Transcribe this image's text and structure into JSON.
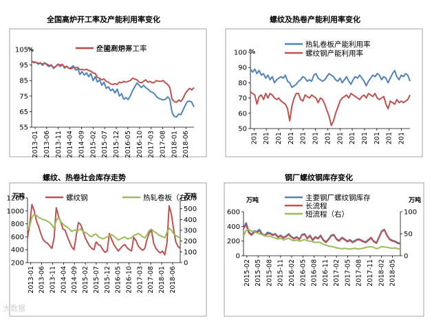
{
  "watermark": "大数据",
  "chart_data": [
    {
      "type": "line",
      "title": "全国高炉开工率及产能利用率变化",
      "ylabel": "%",
      "ylim": [
        55,
        105
      ],
      "yticks": [
        55,
        65,
        75,
        85,
        95,
        105
      ],
      "xticks": [
        "2013-01",
        "2013-06",
        "2013-11",
        "2014-04",
        "2014-09",
        "2015-02",
        "2015-07",
        "2015-12",
        "2016-05",
        "2016-10",
        "2017-03",
        "2017-08",
        "2018-01",
        "2018-06"
      ],
      "legend_position": "top-center",
      "series": [
        {
          "name": "全国高炉开工率",
          "color": "#4F81BD",
          "axis": "left",
          "values": [
            97.5,
            96.5,
            96.8,
            95.5,
            96.5,
            94.8,
            96.5,
            95,
            94,
            95.2,
            92.8,
            94.2,
            95.6,
            94,
            95.5,
            93,
            94.3,
            92.8,
            93.5,
            94.5,
            91.8,
            92.5,
            89,
            90.8,
            88.5,
            90,
            87.5,
            89.5,
            85,
            87.5,
            84,
            85.5,
            82,
            84,
            80,
            81,
            78.5,
            79.5,
            77,
            79.5,
            75,
            76.5,
            73,
            74,
            72.8,
            75.2,
            78.5,
            81,
            83.5,
            82,
            80.5,
            82,
            80.5,
            79.5,
            78,
            77.5,
            76.5,
            74.5,
            73.5,
            73,
            72.5,
            73,
            74.5,
            73,
            64.5,
            62,
            61.5,
            63.5,
            63,
            66,
            69,
            71.5,
            71.8,
            71,
            68
          ]
        },
        {
          "name": "产能利用率",
          "color": "#C0504D",
          "axis": "left",
          "values": [
            97.3,
            97,
            96.6,
            96.2,
            96,
            95.8,
            96,
            95.6,
            94.8,
            94.5,
            93.5,
            94,
            95.5,
            95,
            95.2,
            93.8,
            94,
            93,
            92.5,
            93.5,
            93.3,
            93.5,
            92,
            92.2,
            91.8,
            92.3,
            91.5,
            91,
            90,
            89.5,
            87,
            86.5,
            85.5,
            86,
            84.5,
            84,
            82.8,
            82.5,
            83,
            82.5,
            84,
            83.5,
            84.5,
            84,
            84.5,
            85,
            86.5,
            86,
            85.5,
            84,
            83.5,
            84.5,
            85.5,
            84,
            84.5,
            83.5,
            84,
            85,
            84.5,
            84.5,
            85,
            83.5,
            82.5,
            80.5,
            73,
            71.5,
            71,
            72.5,
            71.5,
            73.5,
            76.5,
            78.5,
            80,
            79,
            80.5
          ]
        }
      ]
    },
    {
      "type": "line",
      "title": "螺纹及热卷产能利用率变化",
      "ylabel": "%",
      "ylim": [
        50,
        100
      ],
      "yticks": [
        50,
        60,
        70,
        80,
        90,
        100
      ],
      "xticks": [
        "201",
        "201",
        "201",
        "201",
        "201",
        "201",
        "201",
        "201",
        "201",
        "201",
        "201",
        "201",
        "201"
      ],
      "legend_position": "top-center",
      "series": [
        {
          "name": "热轧卷板产能利用率",
          "color": "#4F81BD",
          "axis": "left",
          "values": [
            89,
            87,
            89,
            86,
            88,
            85,
            86,
            83,
            85,
            82,
            84,
            80,
            82,
            83,
            84,
            83,
            85,
            81,
            80,
            77,
            78,
            79,
            81,
            82,
            84,
            83,
            81,
            82,
            81,
            85,
            86,
            83,
            82,
            81,
            82,
            84,
            86,
            85,
            84,
            82,
            81,
            83,
            80,
            82,
            84,
            81,
            79,
            82,
            84,
            83,
            85,
            83,
            81,
            78,
            81,
            83,
            85,
            84,
            86,
            85,
            82,
            84,
            83,
            80,
            83,
            86,
            88,
            84,
            82,
            85,
            84,
            86,
            85,
            81
          ]
        },
        {
          "name": "螺纹钢产能利用率",
          "color": "#C0504D",
          "axis": "left",
          "values": [
            74,
            73,
            72,
            66,
            71,
            72,
            69,
            73,
            70,
            73,
            72,
            70,
            69,
            70,
            68,
            67,
            66,
            63,
            55,
            65,
            70,
            73,
            73,
            69,
            68,
            72,
            71,
            70,
            72,
            71,
            70,
            67,
            70,
            69,
            66,
            62,
            58,
            52,
            55,
            60,
            64,
            68,
            70,
            71,
            72,
            70,
            73,
            72,
            71,
            70,
            69,
            71,
            72,
            70,
            73,
            72,
            71,
            73,
            70,
            69,
            70,
            71,
            66,
            63,
            68,
            67,
            66,
            69,
            67,
            68,
            67,
            68,
            69,
            72
          ]
        }
      ]
    },
    {
      "type": "line",
      "title": "螺纹、热卷社会库存走势",
      "ylabel": "万吨",
      "y2label": "万吨",
      "ylim": [
        200,
        1200
      ],
      "yticks": [
        200,
        400,
        600,
        800,
        1000,
        1200
      ],
      "y2lim": [
        0,
        600
      ],
      "y2ticks": [
        0,
        100,
        200,
        300,
        400,
        500,
        600
      ],
      "xticks": [
        "2013-01",
        "2013-06",
        "2013-11",
        "2014-04",
        "2014-09",
        "2015-02",
        "2015-07",
        "2015-12",
        "2016-05",
        "2016-10",
        "2017-03",
        "2017-08",
        "2018-01",
        "2018-06"
      ],
      "legend_position": "top",
      "series": [
        {
          "name": "螺纹钢",
          "color": "#C0504D",
          "axis": "left",
          "values": [
            580,
            790,
            1100,
            1000,
            850,
            760,
            650,
            560,
            520,
            500,
            460,
            420,
            580,
            1050,
            920,
            830,
            720,
            700,
            600,
            520,
            440,
            400,
            620,
            820,
            790,
            700,
            590,
            520,
            460,
            420,
            400,
            520,
            480,
            460,
            400,
            360,
            380,
            650,
            560,
            480,
            430,
            380,
            420,
            460,
            480,
            430,
            400,
            380,
            590,
            540,
            460,
            420,
            390,
            420,
            560,
            660,
            700,
            500,
            420,
            380,
            350,
            380,
            320,
            500,
            1080,
            950,
            720,
            520,
            450,
            420
          ]
        },
        {
          "name": "热轧卷板（右）",
          "color": "#9BBB59",
          "axis": "right",
          "values": [
            300,
            340,
            420,
            450,
            440,
            420,
            410,
            400,
            395,
            385,
            370,
            350,
            320,
            390,
            420,
            380,
            360,
            340,
            330,
            310,
            290,
            300,
            300,
            300,
            315,
            290,
            280,
            270,
            250,
            240,
            260,
            265,
            240,
            230,
            220,
            230,
            240,
            250,
            260,
            245,
            230,
            210,
            220,
            230,
            240,
            220,
            225,
            230,
            250,
            260,
            270,
            260,
            240,
            230,
            260,
            300,
            310,
            290,
            280,
            260,
            250,
            240,
            230,
            280,
            320,
            300,
            270,
            250,
            240,
            230
          ]
        }
      ]
    },
    {
      "type": "line",
      "title": "钢厂螺纹钢库存变化",
      "ylabel": "万吨",
      "y2label": "万吨",
      "ylim": [
        0,
        600
      ],
      "yticks": [
        0,
        200,
        400,
        600
      ],
      "y2lim": [
        0,
        100
      ],
      "y2ticks": [
        0,
        50,
        100
      ],
      "xticks": [
        "2015-02",
        "2015-05",
        "2015-08",
        "2015-11",
        "2016-02",
        "2016-05",
        "2016-08",
        "2016-11",
        "2017-02",
        "2017-05",
        "2017-08",
        "2017-11",
        "2018-02",
        "2018-05"
      ],
      "legend_position": "top-center",
      "series": [
        {
          "name": "主要钢厂螺纹钢库存",
          "color": "#4F81BD",
          "axis": "left",
          "values": [
            380,
            450,
            330,
            290,
            340,
            330,
            360,
            300,
            280,
            320,
            310,
            290,
            300,
            260,
            280,
            250,
            270,
            300,
            260,
            240,
            260,
            230,
            290,
            300,
            240,
            280,
            220,
            260,
            240,
            280,
            220,
            190,
            230,
            280,
            290,
            230,
            210,
            250,
            230,
            200,
            220,
            190,
            210,
            230,
            220,
            200,
            190,
            220,
            250,
            200,
            180,
            260,
            340,
            360,
            280,
            230,
            210,
            200,
            180,
            170
          ]
        },
        {
          "name": "长流程",
          "color": "#C0504D",
          "axis": "left",
          "values": [
            370,
            420,
            310,
            280,
            320,
            320,
            340,
            290,
            270,
            300,
            300,
            280,
            290,
            250,
            270,
            240,
            260,
            290,
            250,
            230,
            250,
            220,
            280,
            290,
            230,
            270,
            210,
            250,
            230,
            270,
            210,
            180,
            220,
            270,
            280,
            220,
            200,
            240,
            220,
            190,
            210,
            180,
            200,
            220,
            210,
            190,
            180,
            210,
            240,
            190,
            170,
            250,
            330,
            350,
            270,
            220,
            200,
            190,
            170,
            160
          ]
        },
        {
          "name": "短流程（右）",
          "color": "#9BBB59",
          "axis": "right",
          "values": [
            45,
            58,
            60,
            56,
            55,
            52,
            50,
            48,
            46,
            44,
            45,
            42,
            40,
            38,
            40,
            36,
            38,
            40,
            36,
            34,
            36,
            33,
            35,
            37,
            34,
            33,
            32,
            30,
            31,
            30,
            26,
            24,
            22,
            21,
            20,
            18,
            17,
            16,
            17,
            16,
            15,
            16,
            17,
            15,
            16,
            17,
            19,
            20,
            21,
            19,
            16,
            18,
            21,
            20,
            19,
            18,
            17,
            18,
            16,
            15
          ]
        }
      ]
    }
  ]
}
